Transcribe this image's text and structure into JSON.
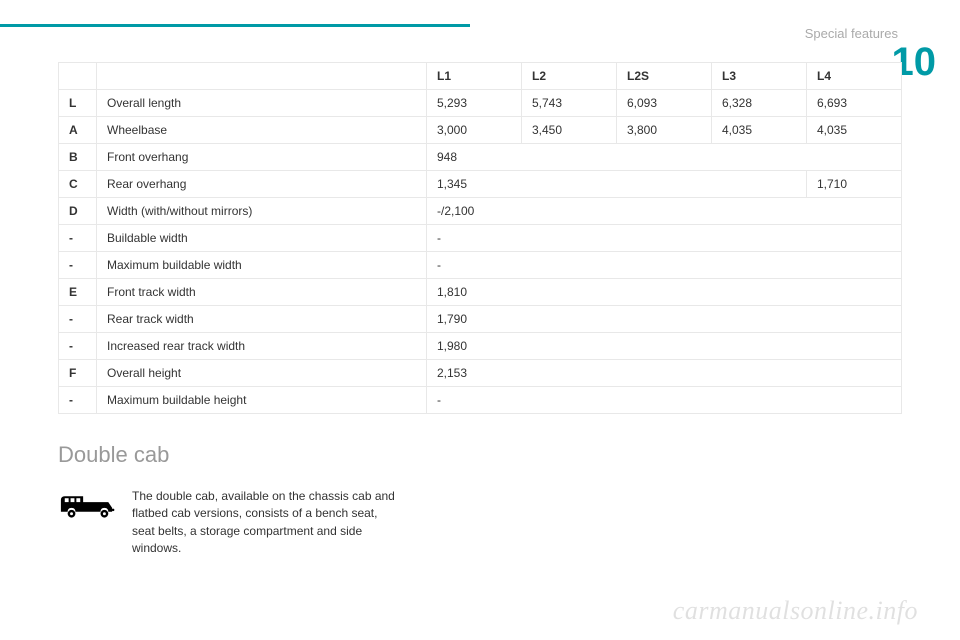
{
  "header": {
    "section_label": "Special features",
    "chapter_number": "10"
  },
  "table": {
    "columns": [
      "",
      "",
      "L1",
      "L2",
      "L2S",
      "L3",
      "L4"
    ],
    "rows": [
      {
        "code": "L",
        "label": "Overall length",
        "cells": [
          "5,293",
          "5,743",
          "6,093",
          "6,328",
          "6,693"
        ]
      },
      {
        "code": "A",
        "label": "Wheelbase",
        "cells": [
          "3,000",
          "3,450",
          "3,800",
          "4,035",
          "4,035"
        ]
      },
      {
        "code": "B",
        "label": "Front overhang",
        "span": 5,
        "cells": [
          "948"
        ]
      },
      {
        "code": "C",
        "label": "Rear overhang",
        "span_first": 4,
        "cells": [
          "1,345",
          "1,710"
        ]
      },
      {
        "code": "D",
        "label": "Width (with/without mirrors)",
        "span": 5,
        "cells": [
          "-/2,100"
        ]
      },
      {
        "code": "-",
        "label": "Buildable width",
        "span": 5,
        "cells": [
          "-"
        ]
      },
      {
        "code": "-",
        "label": "Maximum buildable width",
        "span": 5,
        "cells": [
          "-"
        ]
      },
      {
        "code": "E",
        "label": "Front track width",
        "span": 5,
        "cells": [
          "1,810"
        ]
      },
      {
        "code": "-",
        "label": "Rear track width",
        "span": 5,
        "cells": [
          "1,790"
        ]
      },
      {
        "code": "-",
        "label": "Increased rear track width",
        "span": 5,
        "cells": [
          "1,980"
        ]
      },
      {
        "code": "F",
        "label": "Overall height",
        "span": 5,
        "cells": [
          "2,153"
        ]
      },
      {
        "code": "-",
        "label": "Maximum buildable height",
        "span": 5,
        "cells": [
          "-"
        ]
      }
    ]
  },
  "double_cab": {
    "title": "Double cab",
    "text": "The double cab, available on the chassis cab and flatbed cab versions, consists of a bench seat, seat belts, a storage compartment and side windows."
  },
  "watermark": "carmanualsonline.info",
  "style": {
    "accent_color": "#009aa6",
    "muted_text": "#999999",
    "border_color": "#e8e8e8",
    "body_text": "#333333"
  }
}
